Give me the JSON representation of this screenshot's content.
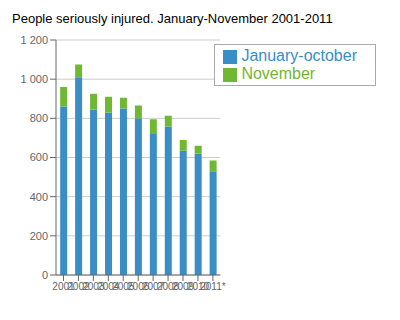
{
  "chart_data": {
    "type": "bar",
    "stacked": true,
    "title": "People seriously injured. January-November 2001-2011",
    "categories": [
      "2001",
      "2002",
      "2003",
      "2004",
      "2005",
      "2006",
      "2007",
      "2008",
      "2009",
      "2010",
      "2011*"
    ],
    "series": [
      {
        "name": "January-october",
        "color": "#3a8dc5",
        "values": [
          860,
          1010,
          845,
          830,
          850,
          800,
          720,
          758,
          635,
          620,
          530
        ]
      },
      {
        "name": "November",
        "color": "#70b833",
        "values": [
          100,
          65,
          80,
          80,
          55,
          65,
          75,
          55,
          55,
          40,
          55
        ]
      }
    ],
    "ylim": [
      0,
      1200
    ],
    "yticks": [
      0,
      200,
      400,
      600,
      800,
      {
        "value": 1000,
        "label": "1 000"
      },
      {
        "value": 1200,
        "label": "1 200"
      }
    ],
    "grid": true,
    "legend": "upper right"
  }
}
